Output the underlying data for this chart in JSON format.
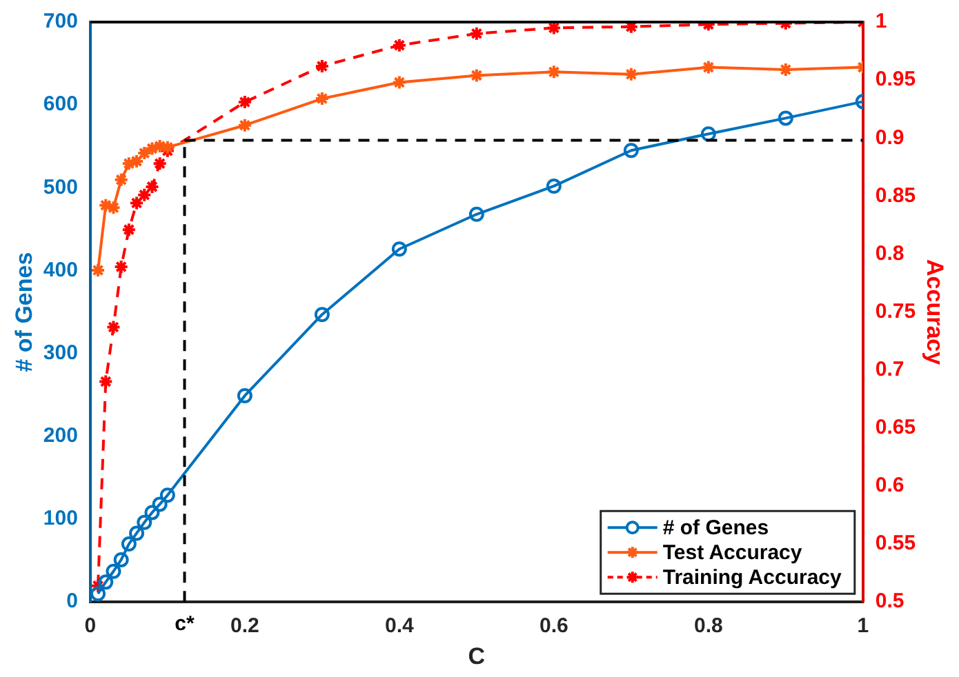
{
  "chart_data": {
    "type": "line",
    "xlabel": "C",
    "ylabel": "# of Genes",
    "y2label": "Accuracy",
    "x": [
      0.01,
      0.02,
      0.03,
      0.04,
      0.05,
      0.06,
      0.07,
      0.08,
      0.09,
      0.1,
      0.2,
      0.3,
      0.4,
      0.5,
      0.6,
      0.7,
      0.8,
      0.9,
      1.0
    ],
    "series": [
      {
        "name": "# of Genes",
        "color": "#0072bd",
        "marker": "circle",
        "line_style": "solid",
        "values": [
          10,
          24,
          37,
          51,
          70,
          83,
          96,
          108,
          118,
          129,
          249,
          347,
          426,
          468,
          502,
          545,
          565,
          584,
          604
        ]
      },
      {
        "name": "Test Accuracy",
        "color": "#ff5a12",
        "marker": "cross",
        "line_style": "solid",
        "axis": "y2",
        "values": [
          0.786,
          0.842,
          0.84,
          0.864,
          0.878,
          0.88,
          0.887,
          0.891,
          0.893,
          0.892,
          0.911,
          0.934,
          0.948,
          0.954,
          0.957,
          0.955,
          0.961,
          0.959,
          0.961
        ]
      },
      {
        "name": "Training Accuracy",
        "color": "#ff0000",
        "marker": "cross",
        "line_style": "dashed",
        "axis": "y2",
        "values": [
          0.514,
          0.69,
          0.737,
          0.789,
          0.821,
          0.844,
          0.851,
          0.858,
          0.878,
          0.889,
          0.931,
          0.962,
          0.98,
          0.99,
          0.995,
          0.996,
          0.998,
          0.999,
          1.0
        ]
      }
    ],
    "xlim": [
      0,
      1
    ],
    "xticks": [
      0,
      0.2,
      0.4,
      0.6,
      0.8,
      1
    ],
    "ylim": [
      0,
      700
    ],
    "yticks": [
      0,
      100,
      200,
      300,
      400,
      500,
      600,
      700
    ],
    "y2lim": [
      0.5,
      1
    ],
    "y2ticks": [
      0.5,
      0.55,
      0.6,
      0.65,
      0.7,
      0.75,
      0.8,
      0.85,
      0.9,
      0.95,
      1
    ],
    "ref_lines": [
      {
        "axis": "x",
        "value": 0.122,
        "label": "c*",
        "color": "#000000",
        "line_style": "dashed"
      },
      {
        "axis": "y2",
        "value": 0.898,
        "color": "#000000",
        "line_style": "dashed"
      }
    ],
    "legend": "bottom right",
    "grid": false
  }
}
